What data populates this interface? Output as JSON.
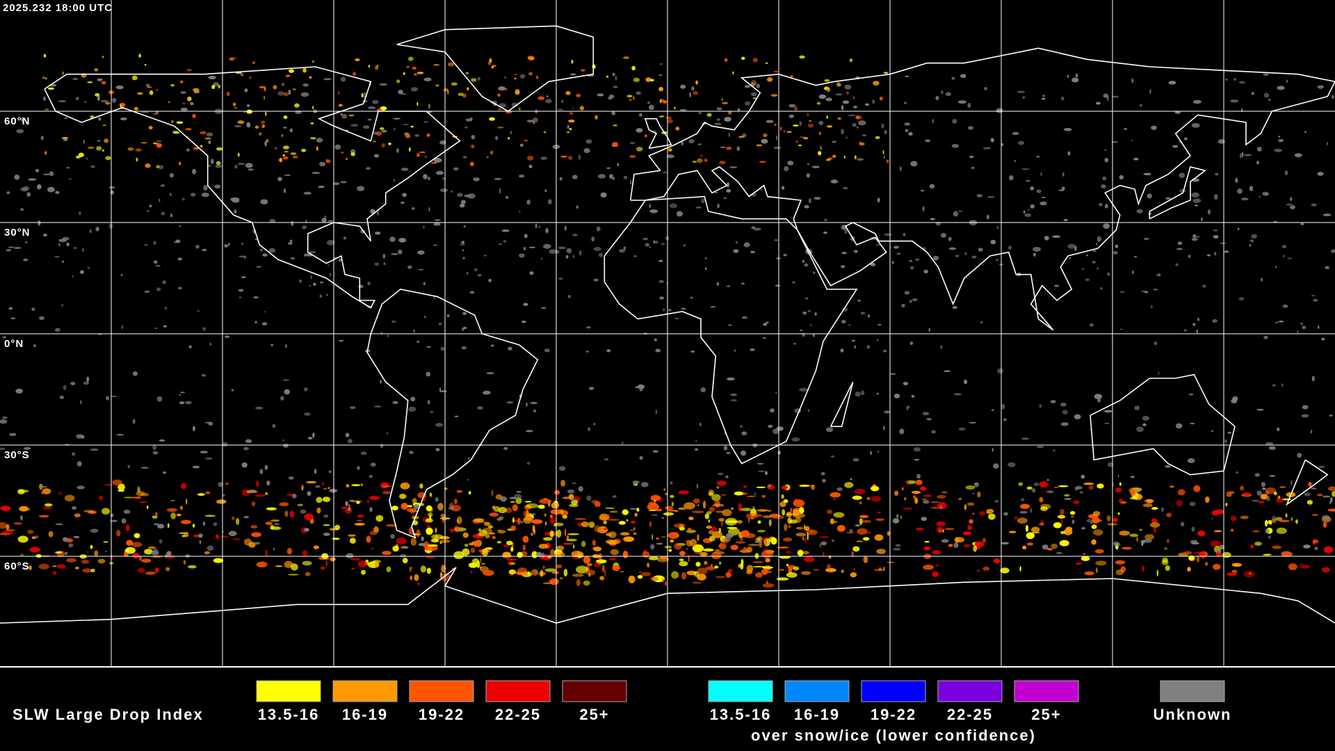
{
  "header": {
    "timestamp": "2025.232 18:00 UTC"
  },
  "map": {
    "latitude_labels": [
      "60°N",
      "30°N",
      "0°N",
      "30°S",
      "60°S"
    ]
  },
  "legend": {
    "title": "SLW Large Drop Index",
    "groups": [
      {
        "items": [
          {
            "label": "13.5-16",
            "color": "#ffff00"
          },
          {
            "label": "16-19",
            "color": "#ff9900"
          },
          {
            "label": "19-22",
            "color": "#ff5500"
          },
          {
            "label": "22-25",
            "color": "#ee0000"
          },
          {
            "label": "25+",
            "color": "#660000"
          }
        ]
      },
      {
        "items": [
          {
            "label": "13.5-16",
            "color": "#00ffff"
          },
          {
            "label": "16-19",
            "color": "#0088ff"
          },
          {
            "label": "19-22",
            "color": "#0000ff"
          },
          {
            "label": "22-25",
            "color": "#7a00e0"
          },
          {
            "label": "25+",
            "color": "#c000d0"
          }
        ],
        "caption": "over snow/ice (lower confidence)"
      },
      {
        "items": [
          {
            "label": "Unknown",
            "color": "#808080"
          }
        ]
      }
    ]
  }
}
